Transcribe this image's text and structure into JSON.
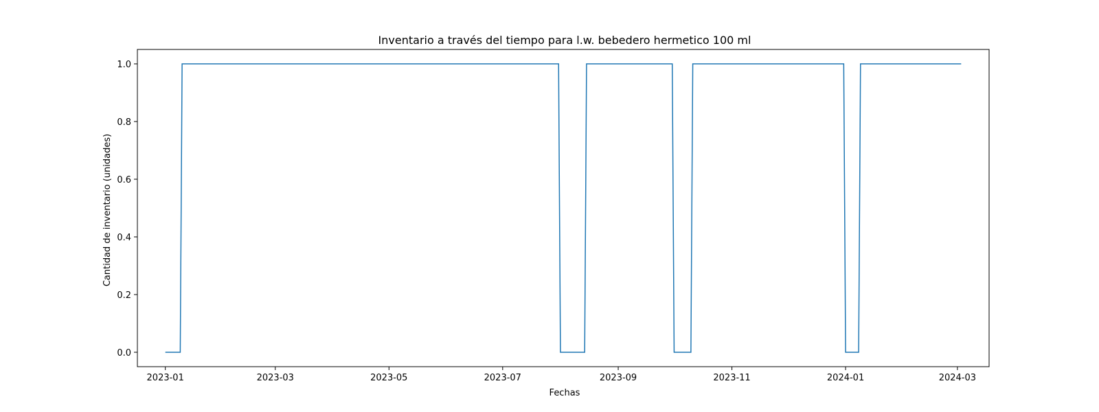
{
  "chart_data": {
    "type": "line",
    "title": "Inventario a través del tiempo para l.w. bebedero hermetico 100 ml",
    "xlabel": "Fechas",
    "ylabel": "Cantidad de inventario (unidades)",
    "x_axis_type": "date",
    "xlim": [
      "2022-12-17",
      "2024-03-18"
    ],
    "ylim": [
      -0.05,
      1.05
    ],
    "x_ticks": [
      "2023-01",
      "2023-03",
      "2023-05",
      "2023-07",
      "2023-09",
      "2023-11",
      "2024-01",
      "2024-03"
    ],
    "x_tick_dates": [
      "2023-01-01",
      "2023-03-01",
      "2023-05-01",
      "2023-07-01",
      "2023-09-01",
      "2023-11-01",
      "2024-01-01",
      "2024-03-01"
    ],
    "y_ticks": [
      "0.0",
      "0.2",
      "0.4",
      "0.6",
      "0.8",
      "1.0"
    ],
    "y_tick_values": [
      0.0,
      0.2,
      0.4,
      0.6,
      0.8,
      1.0
    ],
    "grid": false,
    "legend": "none",
    "line_color": "#1f77b4",
    "series": [
      {
        "x": [
          "2023-01-01",
          "2023-01-09",
          "2023-01-10",
          "2023-07-31",
          "2023-08-01",
          "2023-08-14",
          "2023-08-15",
          "2023-09-30",
          "2023-10-01",
          "2023-10-10",
          "2023-10-11",
          "2023-12-31",
          "2024-01-01",
          "2024-01-08",
          "2024-01-09",
          "2024-03-03"
        ],
        "y": [
          0,
          0,
          1,
          1,
          0,
          0,
          1,
          1,
          0,
          0,
          1,
          1,
          0,
          0,
          1,
          1
        ]
      }
    ]
  }
}
